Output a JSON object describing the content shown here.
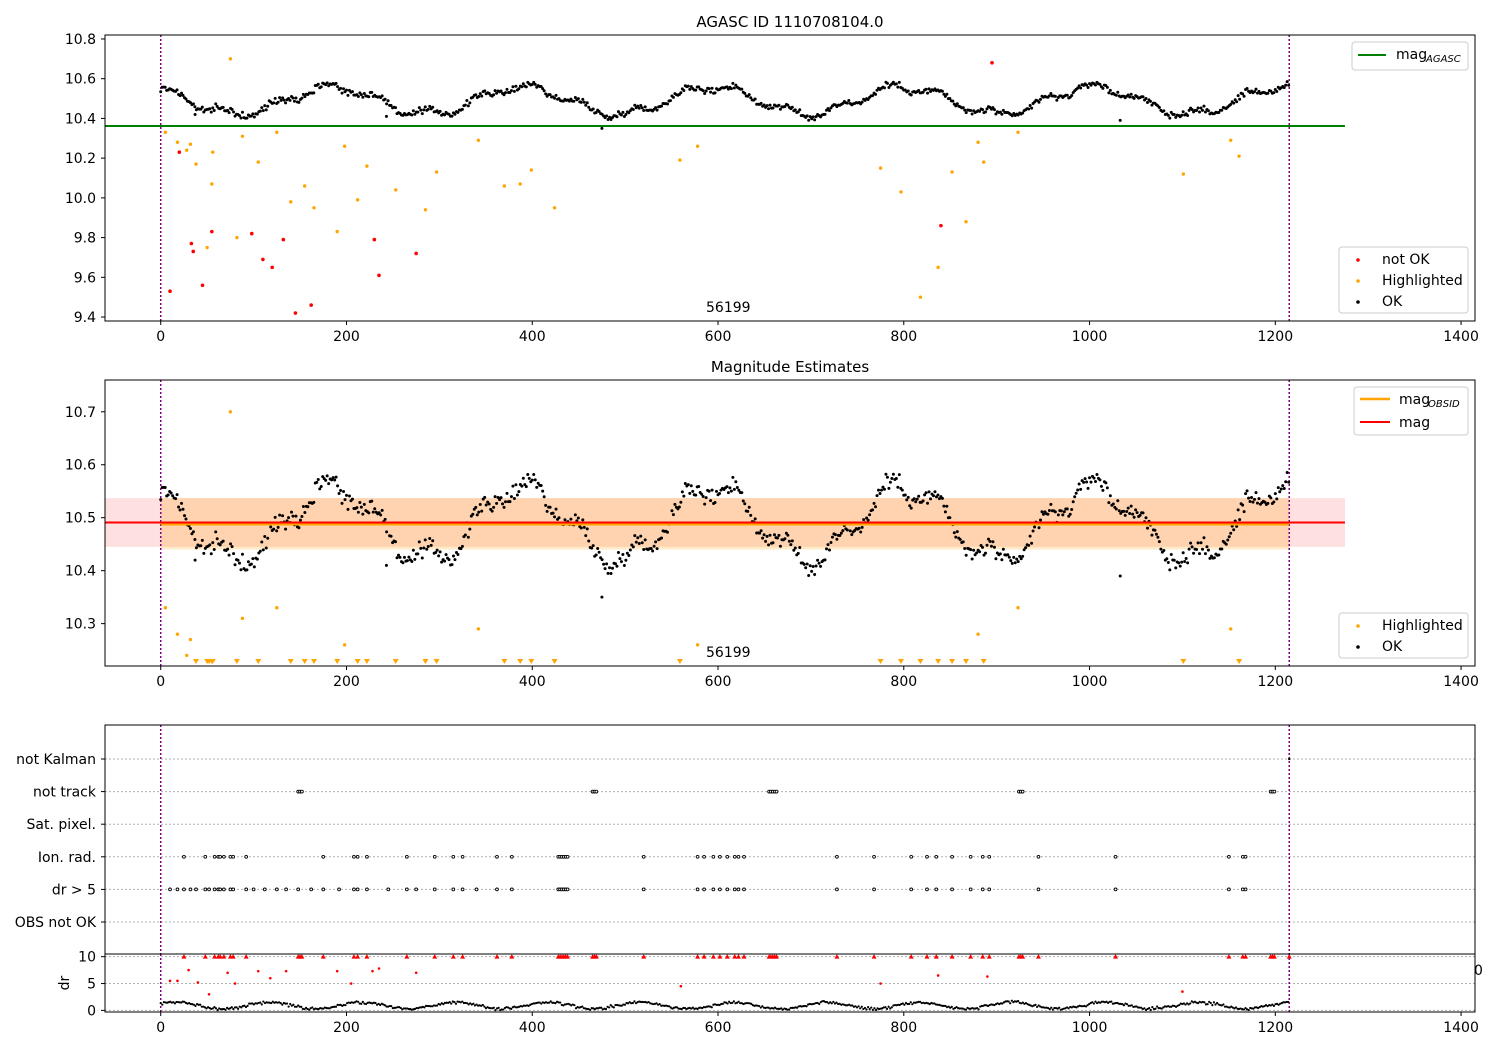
{
  "chart_data": [
    {
      "type": "scatter",
      "title": "AGASC ID 1110708104.0",
      "xlim": [
        -60,
        1415
      ],
      "ylim": [
        9.38,
        10.82
      ],
      "xticks": [
        "0",
        "200",
        "400",
        "600",
        "800",
        "1000",
        "1200",
        "1400"
      ],
      "yticks": [
        "9.4",
        "9.6",
        "9.8",
        "10.0",
        "10.2",
        "10.4",
        "10.6",
        "10.8"
      ],
      "annotation": "56199",
      "vlines": [
        0,
        1215
      ],
      "mag_agasc": 10.362,
      "legend_top": {
        "label": "mag",
        "sub": "AGASC",
        "color": "#008000"
      },
      "legend_bottom": [
        {
          "label": "not OK",
          "color": "#ff0000"
        },
        {
          "label": "Highlighted",
          "color": "#ffa500"
        },
        {
          "label": "OK",
          "color": "#000000"
        }
      ],
      "series": [
        {
          "name": "not OK",
          "color": "#ff0000",
          "points": [
            [
              10,
              9.53
            ],
            [
              20,
              10.23
            ],
            [
              33,
              9.77
            ],
            [
              35,
              9.73
            ],
            [
              45,
              9.56
            ],
            [
              55,
              9.83
            ],
            [
              98,
              9.82
            ],
            [
              110,
              9.69
            ],
            [
              120,
              9.65
            ],
            [
              132,
              9.79
            ],
            [
              145,
              9.42
            ],
            [
              162,
              9.46
            ],
            [
              230,
              9.79
            ],
            [
              235,
              9.61
            ],
            [
              275,
              9.72
            ],
            [
              840,
              9.86
            ],
            [
              895,
              10.68
            ]
          ]
        },
        {
          "name": "Highlighted",
          "color": "#ffa500",
          "points": [
            [
              5,
              10.33
            ],
            [
              18,
              10.28
            ],
            [
              28,
              10.24
            ],
            [
              32,
              10.27
            ],
            [
              38,
              10.17
            ],
            [
              50,
              9.75
            ],
            [
              55,
              10.07
            ],
            [
              56,
              10.23
            ],
            [
              75,
              10.7
            ],
            [
              82,
              9.8
            ],
            [
              88,
              10.31
            ],
            [
              105,
              10.18
            ],
            [
              125,
              10.33
            ],
            [
              140,
              9.98
            ],
            [
              155,
              10.06
            ],
            [
              165,
              9.95
            ],
            [
              190,
              9.83
            ],
            [
              198,
              10.26
            ],
            [
              212,
              9.99
            ],
            [
              222,
              10.16
            ],
            [
              253,
              10.04
            ],
            [
              285,
              9.94
            ],
            [
              297,
              10.13
            ],
            [
              342,
              10.29
            ],
            [
              370,
              10.06
            ],
            [
              387,
              10.07
            ],
            [
              399,
              10.14
            ],
            [
              424,
              9.95
            ],
            [
              559,
              10.19
            ],
            [
              578,
              10.26
            ],
            [
              775,
              10.15
            ],
            [
              797,
              10.03
            ],
            [
              818,
              9.5
            ],
            [
              837,
              9.65
            ],
            [
              852,
              10.13
            ],
            [
              867,
              9.88
            ],
            [
              880,
              10.28
            ],
            [
              886,
              10.18
            ],
            [
              923,
              10.33
            ],
            [
              1101,
              10.12
            ],
            [
              1152,
              10.29
            ],
            [
              1161,
              10.21
            ]
          ]
        },
        {
          "name": "OK",
          "color": "#000000",
          "base": 10.49,
          "amplitude": 0.068,
          "period": 205,
          "phase": 2.2,
          "x_range": [
            0,
            1215
          ],
          "outliers": [
            [
              475,
              10.35
            ],
            [
              1033,
              10.39
            ],
            [
              243,
              10.41
            ],
            [
              37,
              10.42
            ]
          ]
        }
      ]
    },
    {
      "type": "scatter",
      "title": "Magnitude Estimates",
      "xlim": [
        -60,
        1415
      ],
      "ylim": [
        10.22,
        10.76
      ],
      "xticks": [
        "0",
        "200",
        "400",
        "600",
        "800",
        "1000",
        "1200",
        "1400"
      ],
      "yticks": [
        "10.3",
        "10.4",
        "10.5",
        "10.6",
        "10.7"
      ],
      "annotation": "56199",
      "vlines": [
        0,
        1215
      ],
      "mag": 10.491,
      "mag_obsid": 10.488,
      "mag_band": [
        10.445,
        10.537
      ],
      "obsid_band": [
        10.44,
        10.537
      ],
      "legend_top": [
        {
          "label": "mag",
          "sub": "OBSID",
          "color": "#ffa500"
        },
        {
          "label": "mag",
          "sub": "",
          "color": "#ff0000"
        }
      ],
      "legend_bottom": [
        {
          "label": "Highlighted",
          "color": "#ffa500"
        },
        {
          "label": "OK",
          "color": "#000000"
        }
      ],
      "highlighted_in_range": [
        [
          5,
          10.33
        ],
        [
          18,
          10.28
        ],
        [
          28,
          10.24
        ],
        [
          32,
          10.27
        ],
        [
          75,
          10.7
        ],
        [
          88,
          10.31
        ],
        [
          125,
          10.33
        ],
        [
          198,
          10.26
        ],
        [
          342,
          10.29
        ],
        [
          578,
          10.26
        ],
        [
          880,
          10.28
        ],
        [
          923,
          10.33
        ],
        [
          1152,
          10.29
        ]
      ],
      "highlighted_below_range_x": [
        38,
        50,
        52,
        55,
        56,
        82,
        105,
        140,
        155,
        165,
        190,
        212,
        222,
        253,
        285,
        297,
        370,
        387,
        399,
        424,
        559,
        775,
        797,
        818,
        837,
        852,
        867,
        886,
        1101,
        1161
      ]
    },
    {
      "type": "scatter",
      "title": "",
      "xlim": [
        -60,
        1415
      ],
      "categories": [
        "not Kalman",
        "not track",
        "Sat. pixel.",
        "Ion. rad.",
        "dr > 5",
        "OBS not OK"
      ],
      "xticks": [
        "0",
        "200",
        "400",
        "600",
        "800",
        "1000",
        "1200",
        "1400"
      ],
      "vlines": [
        0,
        1215
      ],
      "flags": {
        "not track": [
          148,
          150,
          152,
          465,
          467,
          469,
          655,
          657,
          659,
          661,
          663,
          924,
          926,
          928,
          1195,
          1197,
          1199
        ],
        "Ion. rad.": [
          25,
          48,
          58,
          62,
          64,
          68,
          75,
          78,
          92,
          175,
          208,
          212,
          222,
          265,
          295,
          315,
          325,
          362,
          378,
          428,
          430,
          432,
          434,
          436,
          438,
          520,
          578,
          585,
          595,
          602,
          610,
          618,
          622,
          628,
          728,
          768,
          808,
          825,
          835,
          852,
          872,
          885,
          892,
          945,
          1028,
          1150,
          1165,
          1168
        ],
        "dr > 5": [
          10,
          18,
          25,
          32,
          38,
          48,
          52,
          58,
          62,
          64,
          68,
          75,
          78,
          92,
          100,
          112,
          125,
          135,
          148,
          162,
          175,
          192,
          208,
          212,
          222,
          245,
          265,
          275,
          295,
          315,
          325,
          340,
          362,
          378,
          428,
          430,
          432,
          434,
          436,
          438,
          520,
          578,
          585,
          595,
          602,
          610,
          618,
          622,
          628,
          728,
          768,
          808,
          825,
          835,
          852,
          872,
          885,
          892,
          945,
          1028,
          1150,
          1165,
          1168
        ]
      }
    },
    {
      "type": "scatter",
      "title": "",
      "ylabel": "dr",
      "xlim": [
        -60,
        1415
      ],
      "ylim": [
        -0.3,
        10.5
      ],
      "yticks": [
        "0",
        "5",
        "10"
      ],
      "xticks": [
        "0",
        "200",
        "400",
        "600",
        "800",
        "1000",
        "1200",
        "1400"
      ],
      "overflow_tick": "0",
      "vlines": [
        0,
        1215
      ],
      "red_clipped_x": [
        25,
        48,
        58,
        62,
        64,
        68,
        75,
        78,
        92,
        148,
        150,
        152,
        175,
        208,
        212,
        222,
        265,
        295,
        315,
        325,
        362,
        378,
        428,
        430,
        432,
        434,
        436,
        438,
        465,
        467,
        469,
        520,
        578,
        585,
        595,
        602,
        610,
        618,
        622,
        628,
        655,
        657,
        659,
        661,
        663,
        728,
        768,
        808,
        825,
        835,
        852,
        872,
        885,
        892,
        924,
        926,
        928,
        945,
        1028,
        1150,
        1165,
        1168,
        1195,
        1197,
        1199,
        1215
      ],
      "red_points": [
        [
          10,
          5.5
        ],
        [
          18,
          5.5
        ],
        [
          30,
          7.5
        ],
        [
          40,
          5.2
        ],
        [
          52,
          3.0
        ],
        [
          72,
          7.0
        ],
        [
          80,
          5.0
        ],
        [
          105,
          7.3
        ],
        [
          118,
          6.0
        ],
        [
          135,
          7.3
        ],
        [
          190,
          7.3
        ],
        [
          205,
          5.0
        ],
        [
          228,
          7.3
        ],
        [
          235,
          7.8
        ],
        [
          275,
          7.0
        ],
        [
          560,
          4.5
        ],
        [
          775,
          5.0
        ],
        [
          837,
          6.5
        ],
        [
          890,
          6.3
        ],
        [
          1100,
          3.5
        ]
      ]
    }
  ]
}
